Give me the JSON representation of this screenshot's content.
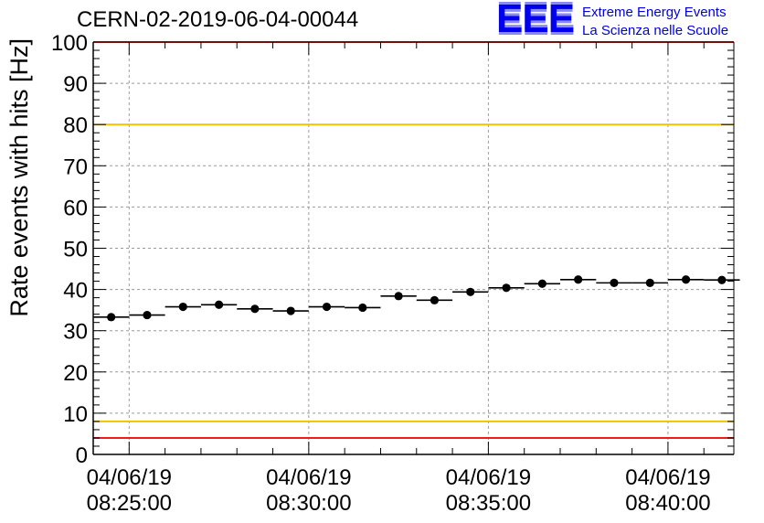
{
  "header": {
    "title": "CERN-02-2019-06-04-00044",
    "logo_mark": "EEE",
    "logo_line1": "Extreme Energy Events",
    "logo_line2": "La Scienza nelle Scuole"
  },
  "chart_data": {
    "type": "scatter",
    "ylabel": "Rate events with hits [Hz]",
    "xlabel": "",
    "ylim": [
      0,
      100
    ],
    "xlim": [
      "04/06/19 08:24:00",
      "04/06/19 08:41:50"
    ],
    "y_ticks": [
      0,
      10,
      20,
      30,
      40,
      50,
      60,
      70,
      80,
      90,
      100
    ],
    "x_ticks": [
      {
        "date": "04/06/19",
        "time": "08:25:00"
      },
      {
        "date": "04/06/19",
        "time": "08:30:00"
      },
      {
        "date": "04/06/19",
        "time": "08:35:00"
      },
      {
        "date": "04/06/19",
        "time": "08:40:00"
      }
    ],
    "grid": true,
    "bin_width": "00:01:00",
    "series": [
      {
        "x": [
          "08:24:30",
          "08:25:30",
          "08:26:30",
          "08:27:30",
          "08:28:30",
          "08:29:30",
          "08:30:30",
          "08:31:30",
          "08:32:30",
          "08:33:30",
          "08:34:30",
          "08:35:30",
          "08:36:30",
          "08:37:30",
          "08:38:30",
          "08:39:30",
          "08:40:30",
          "08:41:30"
        ],
        "values": [
          33.3,
          33.8,
          35.8,
          36.3,
          35.3,
          34.8,
          35.8,
          35.6,
          38.4,
          37.4,
          39.4,
          40.4,
          41.4,
          42.4,
          41.6,
          41.6,
          42.4,
          42.3
        ]
      }
    ],
    "reference_lines": [
      {
        "y": 80,
        "color": "#f2c200"
      },
      {
        "y": 8,
        "color": "#f2c200"
      },
      {
        "y": 4,
        "color": "#ee1c1c"
      },
      {
        "y": 100,
        "color": "#ee1c1c"
      }
    ]
  }
}
